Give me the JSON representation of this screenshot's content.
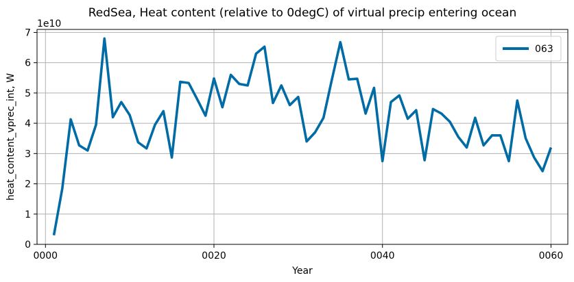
{
  "chart_data": {
    "type": "line",
    "title": "RedSea, Heat content (relative to 0degC) of virtual precip entering ocean",
    "xlabel": "Year",
    "ylabel": "heat_content_vprec_int, W",
    "y_offset_label": "1e10",
    "xlim": [
      -1.0,
      62.0
    ],
    "ylim": [
      0,
      7.1
    ],
    "y_scale_factor": 10000000000.0,
    "xticks": [
      0,
      20,
      40,
      60
    ],
    "xtick_labels": [
      "0000",
      "0020",
      "0040",
      "0060"
    ],
    "yticks": [
      0,
      1,
      2,
      3,
      4,
      5,
      6,
      7
    ],
    "ytick_labels": [
      "0",
      "1",
      "2",
      "3",
      "4",
      "5",
      "6",
      "7"
    ],
    "grid": true,
    "legend_position": "upper right",
    "series": [
      {
        "name": "063",
        "color": "#006ba4",
        "x": [
          1,
          2,
          3,
          4,
          5,
          6,
          7,
          8,
          9,
          10,
          11,
          12,
          13,
          14,
          15,
          16,
          17,
          18,
          19,
          20,
          21,
          22,
          23,
          24,
          25,
          26,
          27,
          28,
          29,
          30,
          31,
          32,
          33,
          34,
          35,
          36,
          37,
          38,
          39,
          40,
          41,
          42,
          43,
          44,
          45,
          46,
          47,
          48,
          49,
          50,
          51,
          52,
          53,
          54,
          55,
          56,
          57,
          58,
          59,
          60
        ],
        "values": [
          0.3,
          1.85,
          4.13,
          3.27,
          3.1,
          3.95,
          6.8,
          4.2,
          4.7,
          4.27,
          3.37,
          3.17,
          3.95,
          4.4,
          2.87,
          5.37,
          5.33,
          4.8,
          4.25,
          5.48,
          4.53,
          5.6,
          5.3,
          5.25,
          6.3,
          6.53,
          4.67,
          5.25,
          4.6,
          4.87,
          3.4,
          3.7,
          4.18,
          5.45,
          6.68,
          5.45,
          5.47,
          4.32,
          5.17,
          2.75,
          4.7,
          4.92,
          4.15,
          4.43,
          2.78,
          4.47,
          4.32,
          4.05,
          3.55,
          3.2,
          4.18,
          3.27,
          3.6,
          3.6,
          2.75,
          4.75,
          3.5,
          2.87,
          2.42,
          3.2
        ]
      }
    ]
  }
}
